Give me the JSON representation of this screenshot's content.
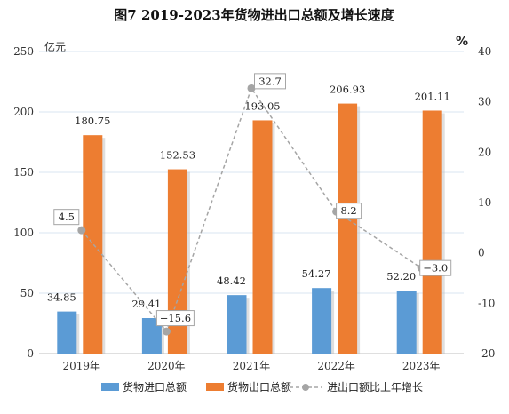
{
  "chart_data": {
    "type": "bar",
    "title": "图7   2019-2023年货物进出口总额及增长速度",
    "categories": [
      "2019年",
      "2020年",
      "2021年",
      "2022年",
      "2023年"
    ],
    "left_axis": {
      "unit": "亿元",
      "min": 0,
      "max": 250,
      "ticks": [
        0,
        50,
        100,
        150,
        200,
        250
      ]
    },
    "right_axis": {
      "unit": "%",
      "min": -20,
      "max": 40,
      "ticks": [
        -20,
        -10,
        0,
        10,
        20,
        30,
        40
      ]
    },
    "series": [
      {
        "name": "货物进口总额",
        "type": "bar",
        "axis": "left",
        "color": "#5B9BD5",
        "values": [
          34.85,
          29.41,
          48.42,
          54.27,
          52.2
        ],
        "labels": [
          "34.85",
          "29.41",
          "48.42",
          "54.27",
          "52.20"
        ]
      },
      {
        "name": "货物出口总额",
        "type": "bar",
        "axis": "left",
        "color": "#ED7D31",
        "values": [
          180.75,
          152.53,
          193.05,
          206.93,
          201.11
        ],
        "labels": [
          "180.75",
          "152.53",
          "193.05",
          "206.93",
          "201.11"
        ]
      },
      {
        "name": "进出口额比上年增长",
        "type": "line",
        "axis": "right",
        "color": "#A5A5A5",
        "values": [
          4.5,
          -15.6,
          32.7,
          8.2,
          -3.0
        ],
        "labels": [
          "4.5",
          "−15.6",
          "32.7",
          "8.2",
          "−3.0"
        ]
      }
    ],
    "grid": true,
    "legend": "bottom"
  }
}
